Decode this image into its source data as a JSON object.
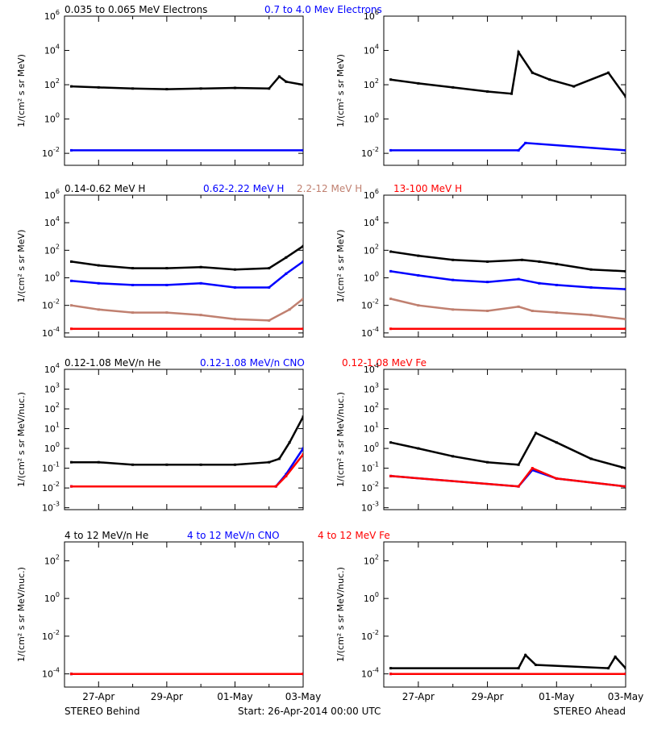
{
  "colors": {
    "black": "#000000",
    "blue": "#0000ff",
    "brown": "#c08070",
    "red": "#ff0000"
  },
  "footer": {
    "left": "STEREO Behind",
    "center": "Start: 26-Apr-2014 00:00 UTC",
    "right": "STEREO Ahead"
  },
  "x_ticks": [
    "27-Apr",
    "29-Apr",
    "01-May",
    "03-May"
  ],
  "chart_data": [
    {
      "type": "scatter",
      "row": 1,
      "log_y": true,
      "ylabel": "1/(cm² s sr MeV)",
      "ylim": [
        0.002,
        1000000
      ],
      "x_days_range": [
        0,
        7
      ],
      "legend": [
        {
          "name": "0.035 to 0.065 MeV Electrons",
          "color": "#000000"
        },
        {
          "name": "0.7 to 4.0 Mev Electrons",
          "color": "#0000ff"
        }
      ],
      "panels": [
        {
          "name": "STEREO Behind",
          "y_ticks": [
            {
              "v": 0.01,
              "t": "10",
              "e": "-2"
            },
            {
              "v": 1,
              "t": "10",
              "e": "0"
            },
            {
              "v": 100,
              "t": "10",
              "e": "2"
            },
            {
              "v": 10000,
              "t": "10",
              "e": "4"
            },
            {
              "v": 1000000,
              "t": "10",
              "e": "6"
            }
          ],
          "series": [
            {
              "name": "0.035 to 0.065 MeV Electrons",
              "x": [
                0.2,
                1,
                2,
                3,
                4,
                5,
                6,
                6.3,
                6.5,
                7
              ],
              "y": [
                80,
                70,
                60,
                55,
                60,
                65,
                60,
                300,
                150,
                100
              ]
            },
            {
              "name": "0.7 to 4.0 Mev Electrons",
              "x": [
                0.2,
                7
              ],
              "y": [
                0.015,
                0.015
              ]
            }
          ]
        },
        {
          "name": "STEREO Ahead",
          "y_ticks": [
            {
              "v": 0.01,
              "t": "10",
              "e": "-2"
            },
            {
              "v": 1,
              "t": "10",
              "e": "0"
            },
            {
              "v": 100,
              "t": "10",
              "e": "2"
            },
            {
              "v": 10000,
              "t": "10",
              "e": "4"
            },
            {
              "v": 1000000,
              "t": "10",
              "e": "6"
            }
          ],
          "series": [
            {
              "name": "0.035 to 0.065 MeV Electrons",
              "x": [
                0.2,
                1,
                2,
                3,
                3.7,
                3.9,
                4.3,
                4.8,
                5.5,
                6.5,
                7
              ],
              "y": [
                200,
                120,
                70,
                40,
                30,
                8000,
                500,
                200,
                80,
                500,
                20
              ]
            },
            {
              "name": "0.7 to 4.0 Mev Electrons",
              "x": [
                0.2,
                3.9,
                4.1,
                7
              ],
              "y": [
                0.015,
                0.015,
                0.04,
                0.015
              ]
            }
          ]
        }
      ]
    },
    {
      "type": "scatter",
      "row": 2,
      "log_y": true,
      "ylabel": "1/(cm² s sr MeV)",
      "ylim": [
        5e-05,
        1000000
      ],
      "x_days_range": [
        0,
        7
      ],
      "legend": [
        {
          "name": "0.14-0.62 MeV H",
          "color": "#000000"
        },
        {
          "name": "0.62-2.22 MeV H",
          "color": "#0000ff"
        },
        {
          "name": "2.2-12 MeV H",
          "color": "#c08070"
        },
        {
          "name": "13-100 MeV H",
          "color": "#ff0000"
        }
      ],
      "panels": [
        {
          "name": "STEREO Behind",
          "y_ticks": [
            {
              "v": 0.0001,
              "t": "10",
              "e": "-4"
            },
            {
              "v": 0.01,
              "t": "10",
              "e": "-2"
            },
            {
              "v": 1,
              "t": "10",
              "e": "0"
            },
            {
              "v": 100,
              "t": "10",
              "e": "2"
            },
            {
              "v": 10000,
              "t": "10",
              "e": "4"
            },
            {
              "v": 1000000,
              "t": "10",
              "e": "6"
            }
          ],
          "series": [
            {
              "name": "0.14-0.62 MeV H",
              "x": [
                0.2,
                1,
                2,
                3,
                4,
                5,
                6,
                6.5,
                7
              ],
              "y": [
                15,
                8,
                5,
                5,
                6,
                4,
                5,
                30,
                200
              ]
            },
            {
              "name": "0.62-2.22 MeV H",
              "x": [
                0.2,
                1,
                2,
                3,
                4,
                5,
                6,
                6.5,
                7
              ],
              "y": [
                0.6,
                0.4,
                0.3,
                0.3,
                0.4,
                0.2,
                0.2,
                2,
                15
              ]
            },
            {
              "name": "2.2-12 MeV H",
              "x": [
                0.2,
                1,
                2,
                3,
                4,
                5,
                6,
                6.6,
                7
              ],
              "y": [
                0.01,
                0.005,
                0.003,
                0.003,
                0.002,
                0.001,
                0.0008,
                0.005,
                0.03
              ]
            },
            {
              "name": "13-100 MeV H",
              "x": [
                0.2,
                7
              ],
              "y": [
                0.0002,
                0.0002
              ]
            }
          ]
        },
        {
          "name": "STEREO Ahead",
          "y_ticks": [
            {
              "v": 0.0001,
              "t": "10",
              "e": "-4"
            },
            {
              "v": 0.01,
              "t": "10",
              "e": "-2"
            },
            {
              "v": 1,
              "t": "10",
              "e": "0"
            },
            {
              "v": 100,
              "t": "10",
              "e": "2"
            },
            {
              "v": 10000,
              "t": "10",
              "e": "4"
            },
            {
              "v": 1000000,
              "t": "10",
              "e": "6"
            }
          ],
          "series": [
            {
              "name": "0.14-0.62 MeV H",
              "x": [
                0.2,
                1,
                2,
                3,
                4,
                4.5,
                5,
                6,
                7
              ],
              "y": [
                80,
                40,
                20,
                15,
                20,
                15,
                10,
                4,
                3
              ]
            },
            {
              "name": "0.62-2.22 MeV H",
              "x": [
                0.2,
                1,
                2,
                3,
                3.9,
                4.5,
                5,
                6,
                7
              ],
              "y": [
                3,
                1.5,
                0.7,
                0.5,
                0.8,
                0.4,
                0.3,
                0.2,
                0.15
              ]
            },
            {
              "name": "2.2-12 MeV H",
              "x": [
                0.2,
                1,
                2,
                3,
                3.9,
                4.3,
                5,
                6,
                7
              ],
              "y": [
                0.03,
                0.01,
                0.005,
                0.004,
                0.008,
                0.004,
                0.003,
                0.002,
                0.001
              ]
            },
            {
              "name": "13-100 MeV H",
              "x": [
                0.2,
                7
              ],
              "y": [
                0.0002,
                0.0002
              ]
            }
          ]
        }
      ]
    },
    {
      "type": "scatter",
      "row": 3,
      "log_y": true,
      "ylabel": "1/(cm² s sr MeV/nuc.)",
      "ylim": [
        0.0008,
        10000
      ],
      "x_days_range": [
        0,
        7
      ],
      "legend": [
        {
          "name": "0.12-1.08 MeV/n He",
          "color": "#000000"
        },
        {
          "name": "0.12-1.08 MeV/n CNO",
          "color": "#0000ff"
        },
        {
          "name": "0.12-1.08 MeV Fe",
          "color": "#ff0000"
        }
      ],
      "panels": [
        {
          "name": "STEREO Behind",
          "y_ticks": [
            {
              "v": 0.001,
              "t": "10",
              "e": "-3"
            },
            {
              "v": 0.01,
              "t": "10",
              "e": "-2"
            },
            {
              "v": 0.1,
              "t": "10",
              "e": "-1"
            },
            {
              "v": 1,
              "t": "10",
              "e": "0"
            },
            {
              "v": 10,
              "t": "10",
              "e": "1"
            },
            {
              "v": 100,
              "t": "10",
              "e": "2"
            },
            {
              "v": 1000,
              "t": "10",
              "e": "3"
            },
            {
              "v": 10000,
              "t": "10",
              "e": "4"
            }
          ],
          "series": [
            {
              "name": "0.12-1.08 MeV/n He",
              "x": [
                0.2,
                1,
                2,
                3,
                4,
                5,
                6,
                6.3,
                6.6,
                7
              ],
              "y": [
                0.2,
                0.2,
                0.15,
                0.15,
                0.15,
                0.15,
                0.2,
                0.3,
                2,
                40
              ]
            },
            {
              "name": "0.12-1.08 MeV/n CNO",
              "x": [
                0.2,
                6.2,
                6.5,
                7
              ],
              "y": [
                0.012,
                0.012,
                0.05,
                1
              ]
            },
            {
              "name": "0.12-1.08 MeV Fe",
              "x": [
                0.2,
                6.2,
                6.5,
                7
              ],
              "y": [
                0.012,
                0.012,
                0.04,
                0.5
              ]
            }
          ]
        },
        {
          "name": "STEREO Ahead",
          "y_ticks": [
            {
              "v": 0.001,
              "t": "10",
              "e": "-3"
            },
            {
              "v": 0.01,
              "t": "10",
              "e": "-2"
            },
            {
              "v": 0.1,
              "t": "10",
              "e": "-1"
            },
            {
              "v": 1,
              "t": "10",
              "e": "0"
            },
            {
              "v": 10,
              "t": "10",
              "e": "1"
            },
            {
              "v": 100,
              "t": "10",
              "e": "2"
            },
            {
              "v": 1000,
              "t": "10",
              "e": "3"
            },
            {
              "v": 10000,
              "t": "10",
              "e": "4"
            }
          ],
          "series": [
            {
              "name": "0.12-1.08 MeV/n He",
              "x": [
                0.2,
                1,
                2,
                3,
                3.9,
                4.4,
                5,
                6,
                7
              ],
              "y": [
                2,
                1,
                0.4,
                0.2,
                0.15,
                6,
                2,
                0.3,
                0.1
              ]
            },
            {
              "name": "0.12-1.08 MeV/n CNO",
              "x": [
                0.2,
                3.9,
                4.3,
                5,
                7
              ],
              "y": [
                0.04,
                0.012,
                0.08,
                0.03,
                0.012
              ]
            },
            {
              "name": "0.12-1.08 MeV Fe",
              "x": [
                0.2,
                3.9,
                4.3,
                5,
                7
              ],
              "y": [
                0.04,
                0.012,
                0.1,
                0.03,
                0.012
              ]
            }
          ]
        }
      ]
    },
    {
      "type": "scatter",
      "row": 4,
      "log_y": true,
      "ylabel": "1/(cm² s sr MeV/nuc.)",
      "ylim": [
        2e-05,
        1000
      ],
      "x_days_range": [
        0,
        7
      ],
      "legend": [
        {
          "name": "4 to 12 MeV/n He",
          "color": "#000000"
        },
        {
          "name": "4 to 12 MeV/n CNO",
          "color": "#0000ff"
        },
        {
          "name": "4 to 12 MeV Fe",
          "color": "#ff0000"
        }
      ],
      "panels": [
        {
          "name": "STEREO Behind",
          "y_ticks": [
            {
              "v": 0.0001,
              "t": "10",
              "e": "-4"
            },
            {
              "v": 0.01,
              "t": "10",
              "e": "-2"
            },
            {
              "v": 1,
              "t": "10",
              "e": "0"
            },
            {
              "v": 100,
              "t": "10",
              "e": "2"
            }
          ],
          "series": [
            {
              "name": "4 to 12 MeV/n He",
              "x": [
                0.2,
                7
              ],
              "y": [
                0.0001,
                0.0001
              ]
            },
            {
              "name": "4 to 12 MeV/n CNO",
              "x": [
                0.2,
                7
              ],
              "y": [
                0.0001,
                0.0001
              ]
            },
            {
              "name": "4 to 12 MeV Fe",
              "x": [
                0.2,
                7
              ],
              "y": [
                0.0001,
                0.0001
              ]
            }
          ]
        },
        {
          "name": "STEREO Ahead",
          "y_ticks": [
            {
              "v": 0.0001,
              "t": "10",
              "e": "-4"
            },
            {
              "v": 0.01,
              "t": "10",
              "e": "-2"
            },
            {
              "v": 1,
              "t": "10",
              "e": "0"
            },
            {
              "v": 100,
              "t": "10",
              "e": "2"
            }
          ],
          "series": [
            {
              "name": "4 to 12 MeV/n He",
              "x": [
                0.2,
                3.9,
                4.1,
                4.4,
                6.5,
                6.7,
                7
              ],
              "y": [
                0.0002,
                0.0002,
                0.001,
                0.0003,
                0.0002,
                0.0008,
                0.0002
              ]
            },
            {
              "name": "4 to 12 MeV/n CNO",
              "x": [
                0.2,
                7
              ],
              "y": [
                0.0001,
                0.0001
              ]
            },
            {
              "name": "4 to 12 MeV Fe",
              "x": [
                0.2,
                7
              ],
              "y": [
                0.0001,
                0.0001
              ]
            }
          ]
        }
      ]
    }
  ]
}
